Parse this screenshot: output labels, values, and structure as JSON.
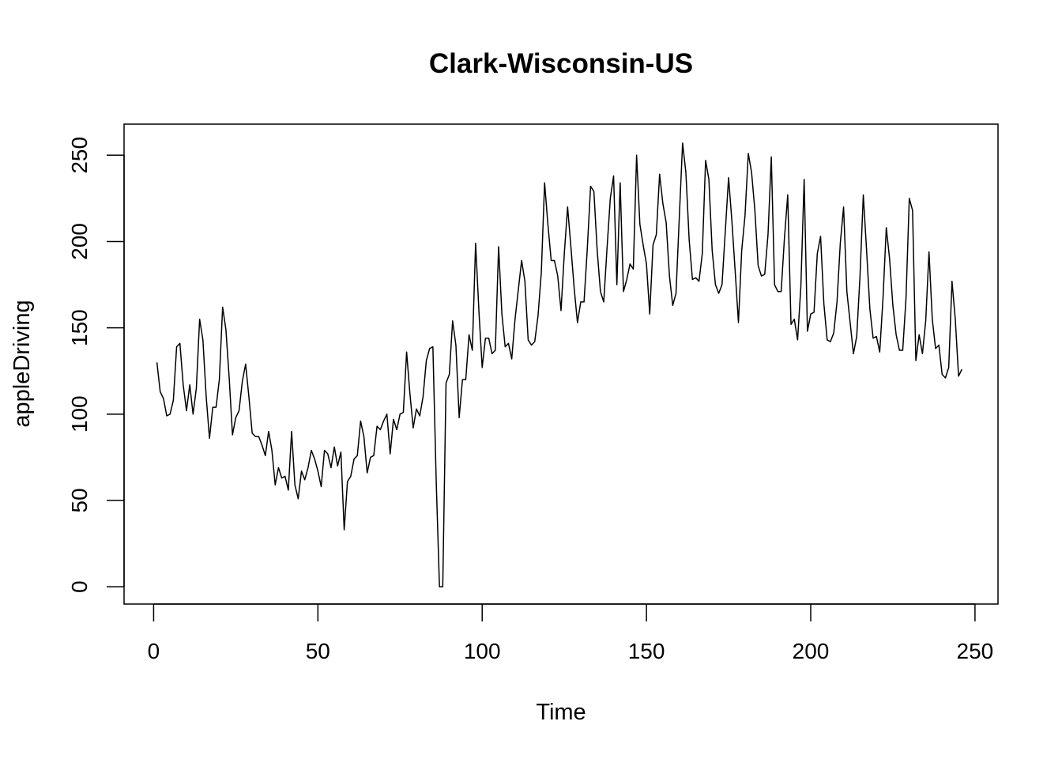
{
  "chart_data": {
    "type": "line",
    "title": "Clark-Wisconsin-US",
    "xlabel": "Time",
    "ylabel": "appleDriving",
    "xlim": [
      -9,
      257
    ],
    "ylim": [
      -10,
      268
    ],
    "x_ticks": [
      0,
      50,
      100,
      150,
      200,
      250
    ],
    "y_ticks": [
      0,
      50,
      100,
      150,
      200,
      250
    ],
    "x_start": 1,
    "grid": false,
    "legend": "none",
    "line_color": "#000000",
    "series": [
      {
        "values": [
          130,
          113,
          109,
          99,
          100,
          108,
          139,
          141,
          117,
          102,
          117,
          100,
          115,
          155,
          143,
          110,
          86,
          104,
          104,
          120,
          162,
          149,
          121,
          88,
          98,
          102,
          119,
          129,
          110,
          89,
          87,
          87,
          82,
          76,
          90,
          79,
          59,
          69,
          63,
          64,
          56,
          90,
          59,
          51,
          67,
          62,
          69,
          79,
          74,
          67,
          58,
          79,
          77,
          69,
          81,
          70,
          78,
          33,
          61,
          64,
          74,
          76,
          96,
          87,
          66,
          75,
          76,
          93,
          91,
          96,
          100,
          77,
          97,
          91,
          100,
          101,
          136,
          112,
          92,
          103,
          99,
          110,
          131,
          138,
          139,
          62,
          0,
          0,
          118,
          123,
          154,
          140,
          98,
          120,
          120,
          146,
          137,
          199,
          160,
          127,
          144,
          144,
          135,
          137,
          197,
          158,
          139,
          141,
          132,
          155,
          172,
          189,
          177,
          143,
          140,
          142,
          157,
          182,
          234,
          210,
          189,
          189,
          180,
          160,
          193,
          220,
          197,
          173,
          153,
          165,
          165,
          196,
          232,
          229,
          195,
          171,
          165,
          196,
          225,
          238,
          175,
          234,
          171,
          178,
          187,
          184,
          250,
          210,
          198,
          187,
          158,
          198,
          204,
          239,
          222,
          211,
          180,
          163,
          170,
          214,
          257,
          240,
          201,
          178,
          179,
          177,
          193,
          247,
          236,
          195,
          175,
          170,
          175,
          206,
          237,
          212,
          183,
          153,
          195,
          215,
          251,
          240,
          218,
          186,
          180,
          181,
          204,
          249,
          175,
          171,
          171,
          202,
          227,
          152,
          155,
          143,
          174,
          236,
          148,
          158,
          159,
          193,
          203,
          164,
          143,
          142,
          147,
          165,
          199,
          220,
          171,
          153,
          135,
          145,
          180,
          227,
          195,
          161,
          144,
          145,
          136,
          167,
          208,
          190,
          163,
          146,
          137,
          137,
          167,
          225,
          218,
          131,
          146,
          135,
          154,
          194,
          155,
          138,
          140,
          123,
          121,
          127,
          177,
          155,
          122,
          126
        ]
      }
    ]
  }
}
